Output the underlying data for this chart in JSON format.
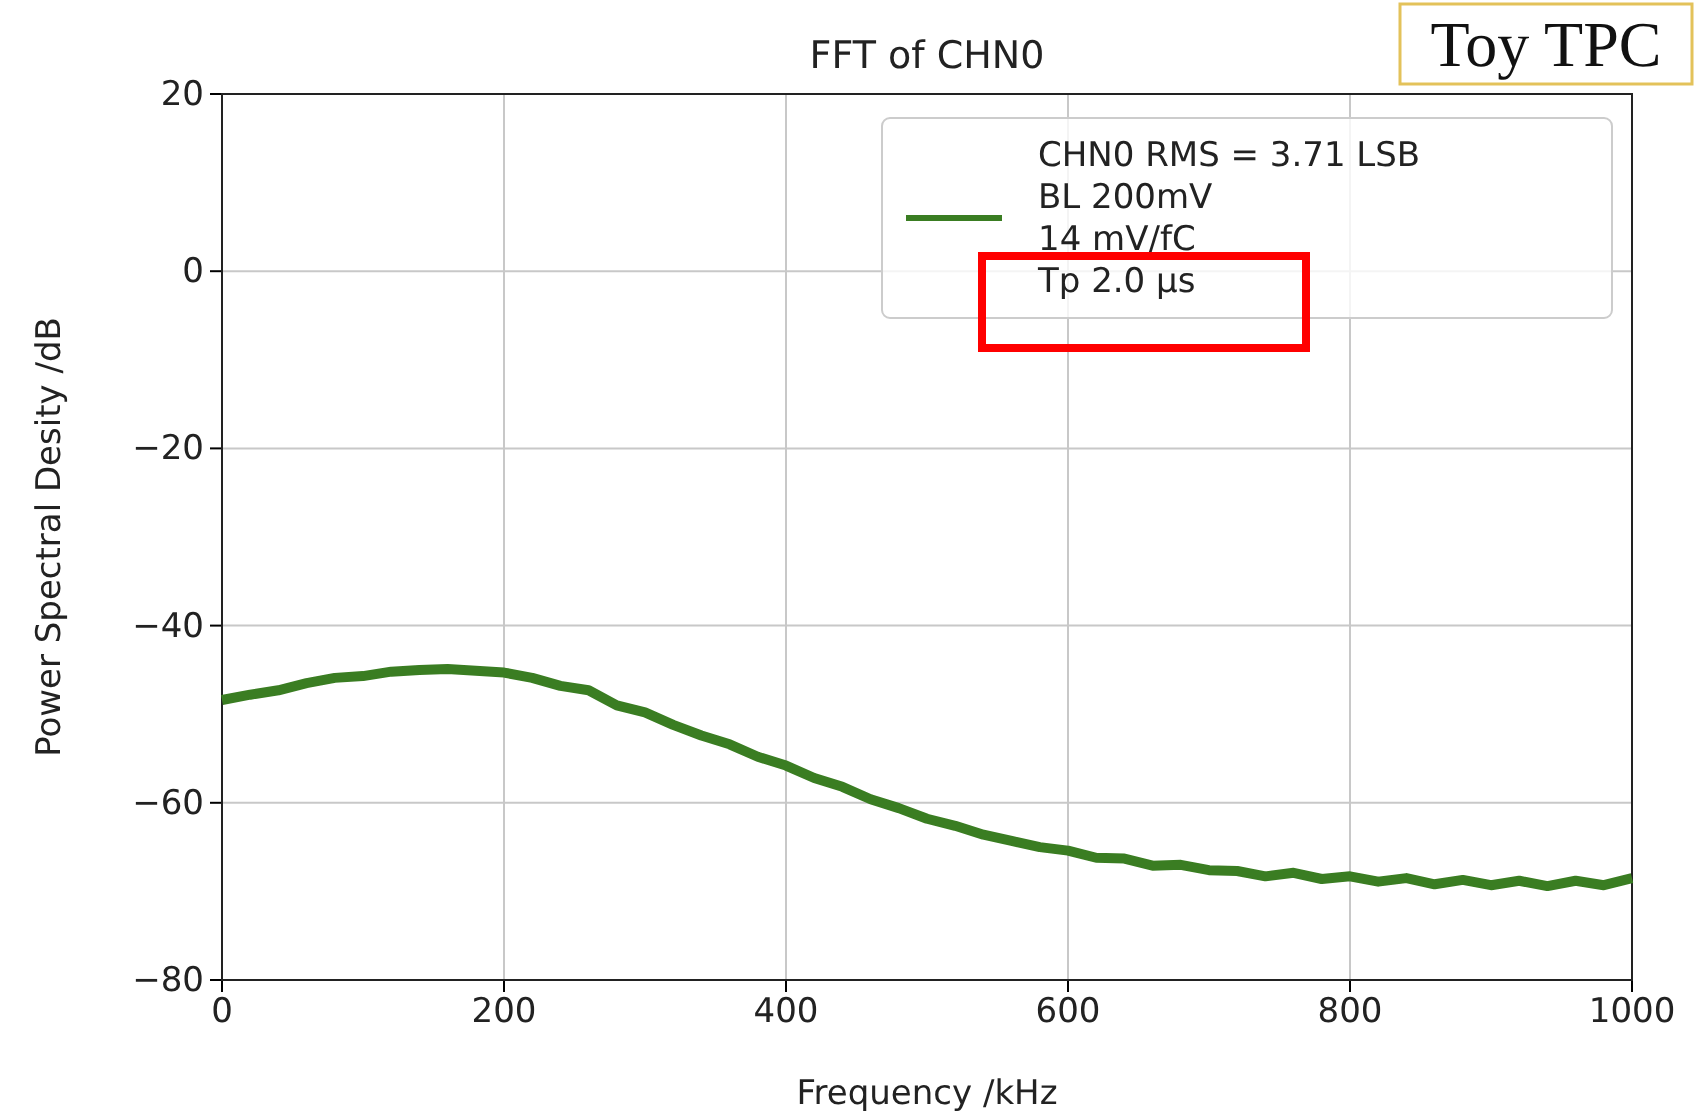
{
  "chart_data": {
    "type": "line",
    "title": "FFT of CHN0",
    "xlabel": "Frequency /kHz",
    "ylabel": "Power Spectral Desity /dB",
    "annotations": [
      "Toy TPC"
    ],
    "x": [
      0,
      20,
      40,
      60,
      80,
      100,
      120,
      140,
      160,
      180,
      200,
      220,
      240,
      260,
      280,
      300,
      320,
      340,
      360,
      380,
      400,
      420,
      440,
      460,
      480,
      500,
      520,
      540,
      560,
      580,
      600,
      620,
      640,
      660,
      680,
      700,
      720,
      740,
      760,
      780,
      800,
      820,
      840,
      860,
      880,
      900,
      920,
      940,
      960,
      980,
      1000
    ],
    "series": [
      {
        "name": "CHN0 RMS = 3.71 LSB\nBL 200mV\n14 mV/fC\nTp 2.0 μs",
        "color": "#3a7d22",
        "values": [
          -48.4,
          -47.8,
          -47.3,
          -46.5,
          -45.9,
          -45.7,
          -45.2,
          -45.0,
          -44.9,
          -45.1,
          -45.3,
          -45.9,
          -46.8,
          -47.3,
          -49.0,
          -49.8,
          -51.2,
          -52.4,
          -53.4,
          -54.8,
          -55.8,
          -57.2,
          -58.2,
          -59.6,
          -60.6,
          -61.8,
          -62.6,
          -63.6,
          -64.3,
          -65.0,
          -65.4,
          -66.2,
          -66.3,
          -67.1,
          -67.0,
          -67.6,
          -67.7,
          -68.3,
          -67.9,
          -68.6,
          -68.3,
          -68.9,
          -68.5,
          -69.2,
          -68.7,
          -69.3,
          -68.8,
          -69.4,
          -68.8,
          -69.3,
          -68.5
        ]
      }
    ],
    "xlim": [
      0,
      1000
    ],
    "xticks": [
      0,
      200,
      400,
      600,
      800,
      1000
    ],
    "ylim": [
      -80,
      20
    ],
    "yticks": [
      -80,
      -60,
      -40,
      -20,
      0,
      20
    ],
    "grid": true,
    "legend": "top right",
    "line_style": "solid"
  }
}
